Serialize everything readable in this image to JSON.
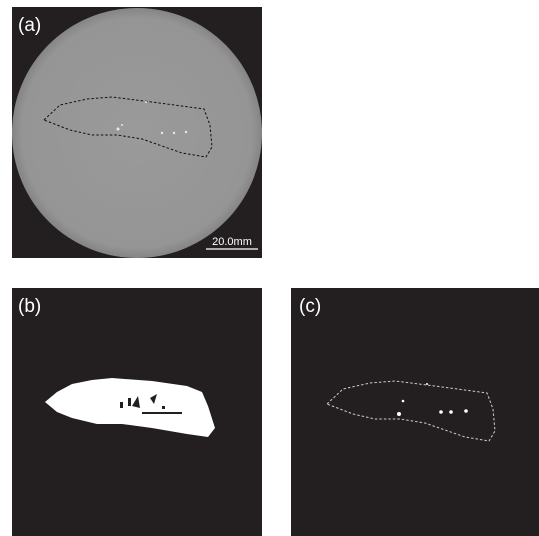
{
  "panels": [
    {
      "label": "(a)"
    },
    {
      "label": "(b)"
    },
    {
      "label": "(c)"
    }
  ],
  "scale_bar": "20.0mm"
}
